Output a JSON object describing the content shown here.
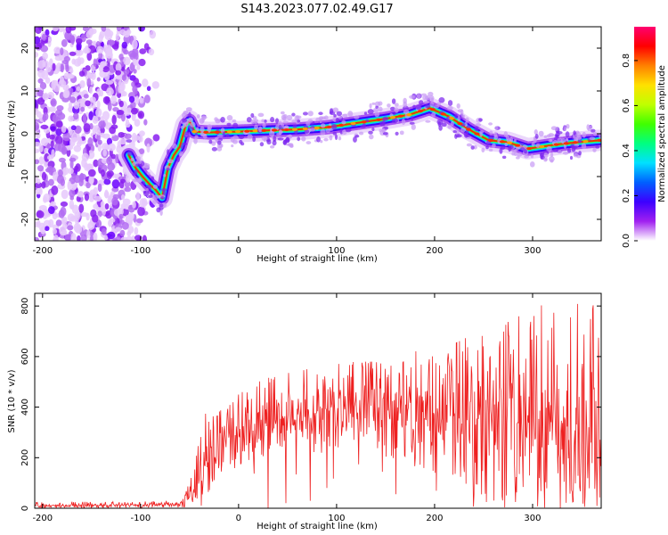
{
  "title": "S143.2023.077.02.49.G17",
  "chart_data": [
    {
      "type": "heatmap",
      "title": "",
      "xlabel": "Height of straight line (km)",
      "ylabel": "Frequency (Hz)",
      "xlim": [
        -208,
        370
      ],
      "ylim": [
        -25,
        25
      ],
      "xticks": [
        -200,
        -100,
        0,
        100,
        200,
        300
      ],
      "xtick_labels": [
        "-200",
        "-100",
        "0",
        "100",
        "200",
        "300"
      ],
      "yticks": [
        -20,
        -10,
        0,
        10,
        20
      ],
      "ytick_labels": [
        "-20",
        "-10",
        "0",
        "10",
        "20"
      ],
      "grid": false,
      "colorbar": {
        "label": "Normalized spectral amplitude",
        "range": [
          0,
          0.95
        ],
        "ticks": [
          0,
          0.2,
          0.4,
          0.6,
          0.8
        ],
        "tick_labels": [
          "0.0",
          "0.2",
          "0.4",
          "0.6",
          "0.8"
        ],
        "colormap": "rainbow",
        "stops": [
          "#ffffff",
          "#a020f0",
          "#3c00ff",
          "#0060ff",
          "#00e0ff",
          "#00ff80",
          "#40ff00",
          "#c0ff00",
          "#ffe000",
          "#ff8000",
          "#ff0000",
          "#ff0070"
        ]
      },
      "ridge": {
        "x": [
          -112,
          -105,
          -98,
          -90,
          -85,
          -78,
          -72,
          -66,
          -60,
          -54,
          -50,
          -45,
          -30,
          0,
          30,
          60,
          90,
          120,
          150,
          175,
          195,
          215,
          235,
          255,
          275,
          295,
          310,
          325,
          345,
          370
        ],
        "y": [
          -5,
          -8,
          -10,
          -12,
          -13,
          -15,
          -8,
          -5,
          -3,
          2,
          3,
          0.5,
          0.3,
          0.5,
          0.8,
          1,
          1.5,
          2.5,
          3.5,
          4.5,
          6,
          4,
          1,
          -1.5,
          -2,
          -3.5,
          -3,
          -2.5,
          -2,
          -1.5
        ]
      },
      "noise_region_x": [
        -208,
        -80
      ]
    },
    {
      "type": "line",
      "title": "",
      "xlabel": "Height of straight line (km)",
      "ylabel": "SNR (10 * v/v)",
      "xlim": [
        -208,
        370
      ],
      "ylim": [
        0,
        850
      ],
      "xticks": [
        -200,
        -100,
        0,
        100,
        200,
        300
      ],
      "xtick_labels": [
        "-200",
        "-100",
        "0",
        "100",
        "200",
        "300"
      ],
      "yticks": [
        0,
        200,
        400,
        600,
        800
      ],
      "ytick_labels": [
        "0",
        "200",
        "400",
        "600",
        "800"
      ],
      "grid": false,
      "series": [
        {
          "color": "#ee2020",
          "envelope": {
            "x": [
              -208,
              -60,
              -45,
              -40,
              -35,
              -30,
              -25,
              -20,
              -10,
              0,
              20,
              40,
              60,
              80,
              100,
              120,
              140,
              160,
              180,
              200,
              220,
              240,
              260,
              280,
              300,
              320,
              340,
              370
            ],
            "low": [
              0,
              0,
              5,
              20,
              30,
              60,
              100,
              120,
              140,
              160,
              200,
              220,
              230,
              230,
              240,
              230,
              210,
              190,
              150,
              130,
              120,
              60,
              40,
              30,
              20,
              20,
              10,
              10
            ],
            "mid": [
              10,
              15,
              60,
              120,
              180,
              220,
              250,
              260,
              280,
              300,
              330,
              350,
              370,
              380,
              400,
              400,
              400,
              390,
              380,
              380,
              360,
              350,
              340,
              330,
              330,
              330,
              320,
              320
            ],
            "high": [
              25,
              30,
              150,
              300,
              450,
              380,
              360,
              380,
              420,
              450,
              500,
              530,
              540,
              560,
              570,
              580,
              580,
              600,
              620,
              640,
              650,
              690,
              700,
              750,
              780,
              830,
              810,
              800
            ]
          }
        }
      ]
    }
  ]
}
